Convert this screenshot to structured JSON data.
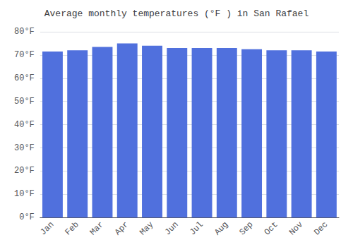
{
  "chart_data": {
    "type": "bar",
    "title": "Average monthly temperatures (°F ) in San Rafael",
    "categories": [
      "Jan",
      "Feb",
      "Mar",
      "Apr",
      "May",
      "Jun",
      "Jul",
      "Aug",
      "Sep",
      "Oct",
      "Nov",
      "Dec"
    ],
    "values": [
      71.5,
      72.0,
      73.5,
      75.0,
      74.0,
      73.0,
      73.0,
      73.0,
      72.5,
      72.0,
      72.0,
      71.5
    ],
    "ylim": [
      0,
      80
    ],
    "yticks": [
      {
        "value": 0,
        "label": "0°F"
      },
      {
        "value": 10,
        "label": "10°F"
      },
      {
        "value": 20,
        "label": "20°F"
      },
      {
        "value": 30,
        "label": "30°F"
      },
      {
        "value": 40,
        "label": "40°F"
      },
      {
        "value": 50,
        "label": "50°F"
      },
      {
        "value": 60,
        "label": "60°F"
      },
      {
        "value": 70,
        "label": "70°F"
      },
      {
        "value": 80,
        "label": "80°F"
      }
    ],
    "grid": true
  }
}
